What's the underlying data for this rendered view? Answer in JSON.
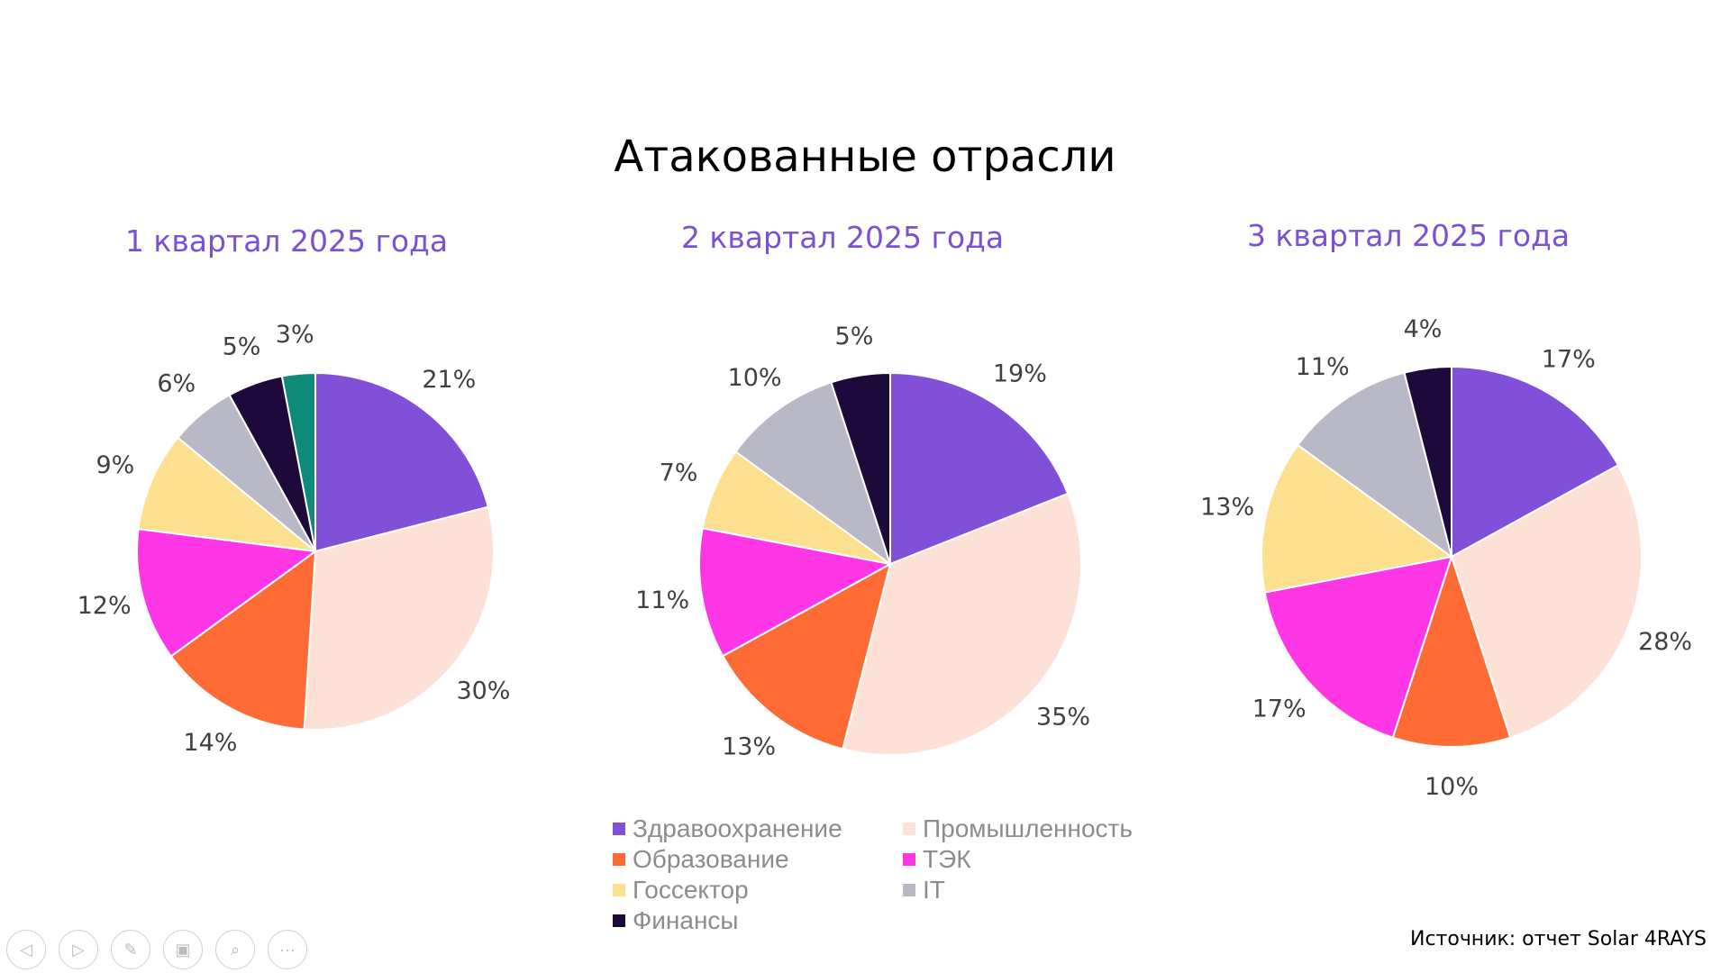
{
  "chart_data": {
    "type": "pie",
    "title": "Атакованные отрасли",
    "categories": [
      "Здравоохранение",
      "Промышленность",
      "Образование",
      "ТЭК",
      "Госсектор",
      "IT",
      "Финансы"
    ],
    "colors": [
      "#8250D8",
      "#FDE1D7",
      "#FF6B35",
      "#FF36E6",
      "#FCE08F",
      "#B8B8C6",
      "#1D0A3A"
    ],
    "extra_slice_color": "#0F8A7A",
    "legend_position": "bottom",
    "charts": [
      {
        "title": "1 квартал 2025 года",
        "values": [
          21,
          30,
          14,
          12,
          9,
          6,
          5,
          3
        ],
        "labels": [
          "21%",
          "30%",
          "14%",
          "12%",
          "9%",
          "6%",
          "5%",
          "3%"
        ]
      },
      {
        "title": "2 квартал 2025 года",
        "values": [
          19,
          35,
          13,
          11,
          7,
          10,
          5
        ],
        "labels": [
          "19%",
          "35%",
          "13%",
          "11%",
          "7%",
          "10%",
          "5%"
        ]
      },
      {
        "title": "3 квартал 2025 года",
        "values": [
          17,
          28,
          10,
          17,
          13,
          11,
          4
        ],
        "labels": [
          "17%",
          "28%",
          "10%",
          "17%",
          "13%",
          "11%",
          "4%"
        ]
      }
    ]
  },
  "source": "Источник: отчет Solar 4RAYS",
  "nav": [
    "previous-icon",
    "next-icon",
    "pen-icon",
    "slides-icon",
    "zoom-icon",
    "more-icon"
  ]
}
